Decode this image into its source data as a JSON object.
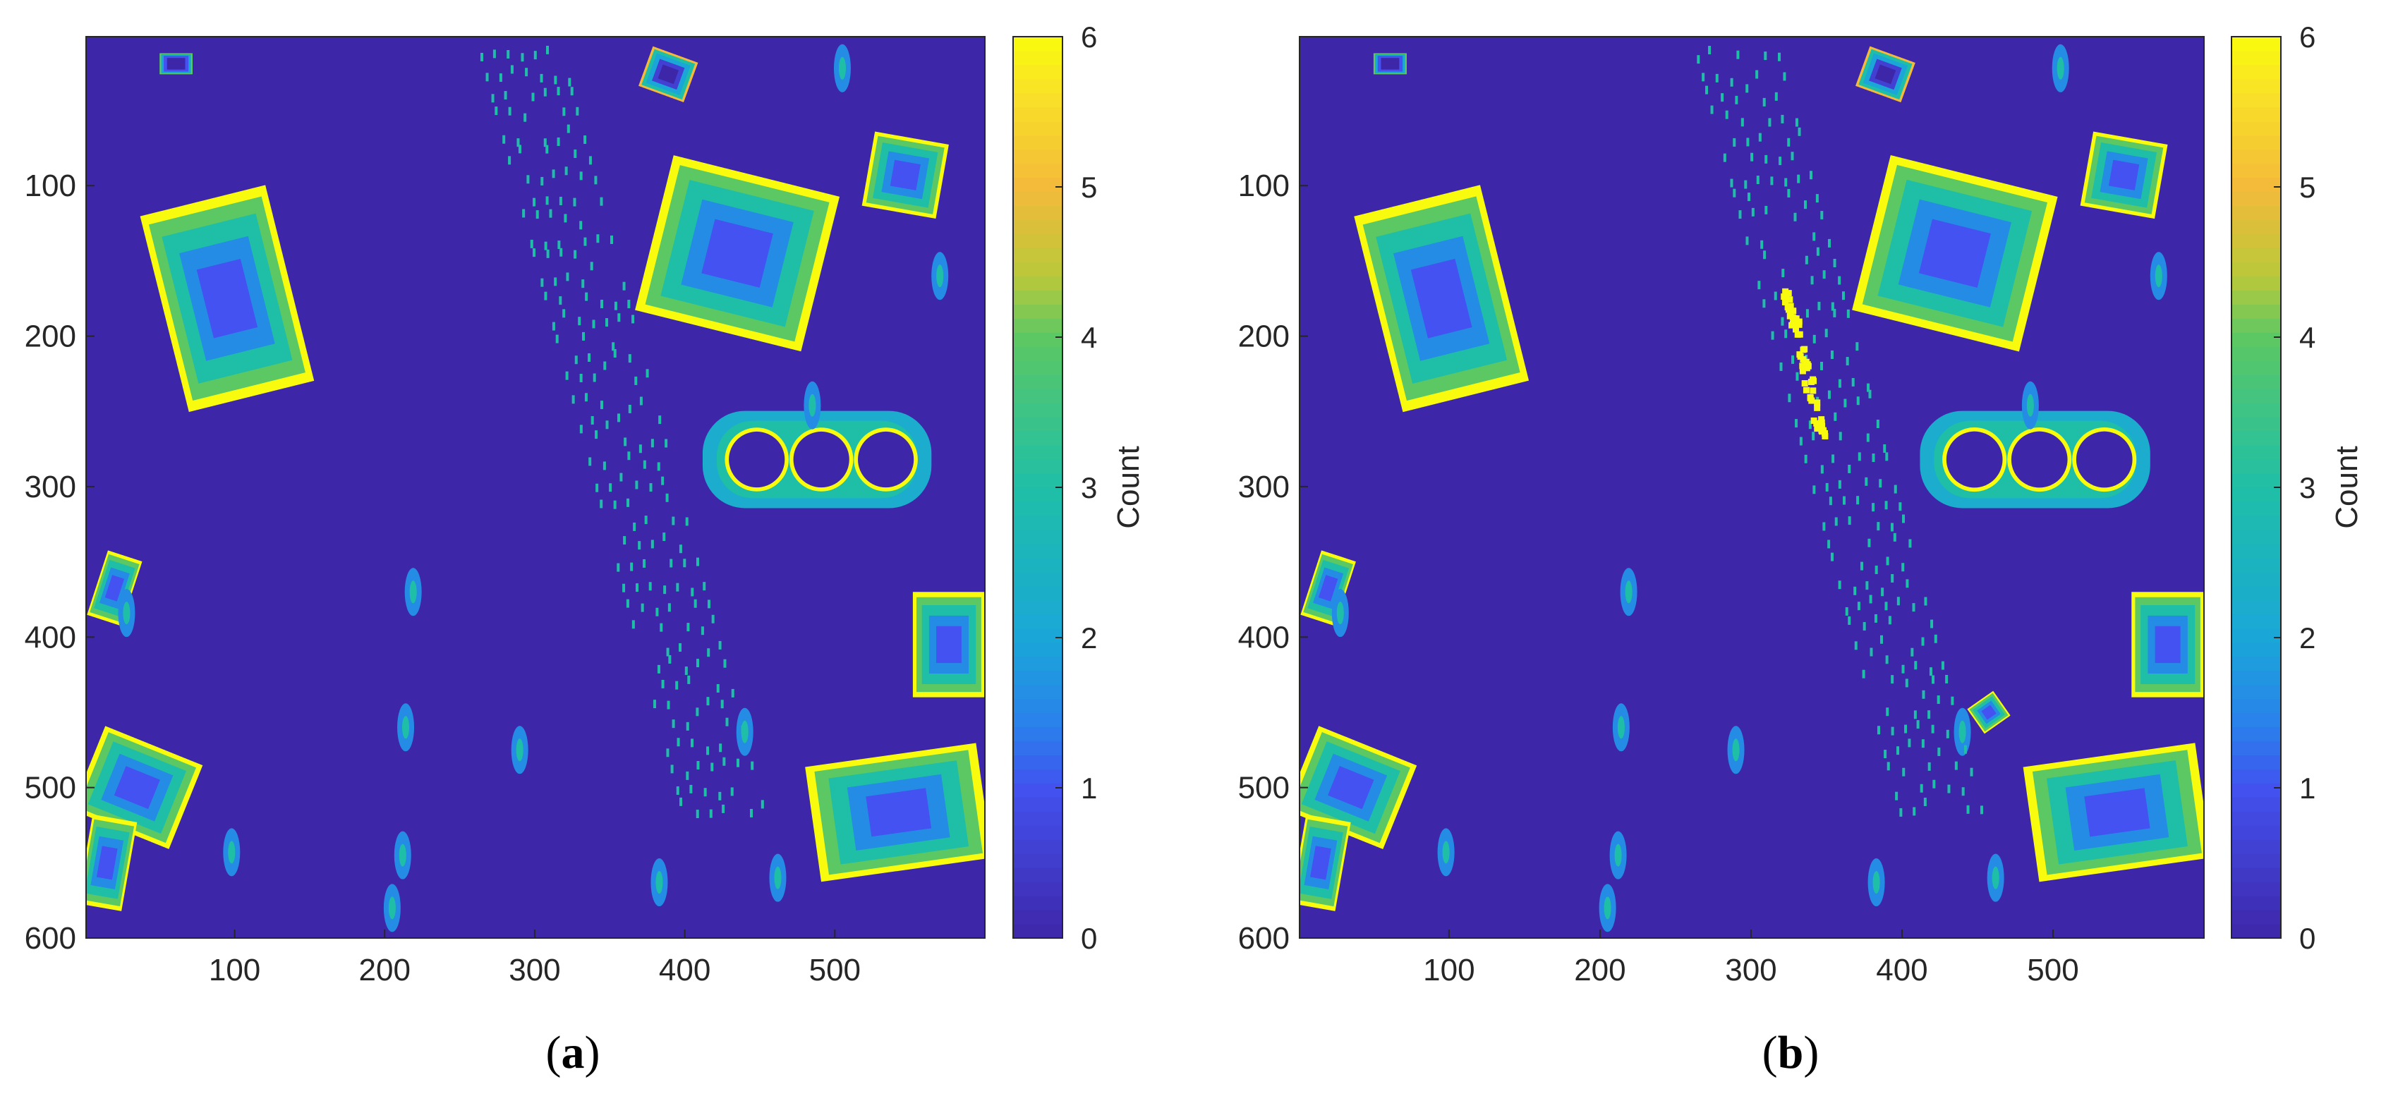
{
  "panels": [
    {
      "label_open": "(",
      "label_letter": "a",
      "label_close": ")",
      "chart_data": {
        "type": "heatmap",
        "xlim": [
          1,
          600
        ],
        "ylim": [
          1,
          600
        ],
        "y_direction": "reverse",
        "x_ticks": [
          "100",
          "200",
          "300",
          "400",
          "500"
        ],
        "y_ticks": [
          "100",
          "200",
          "300",
          "400",
          "500",
          "600"
        ],
        "colorbar": {
          "label": "Count",
          "range": [
            0,
            6
          ],
          "ticks": [
            "0",
            "1",
            "2",
            "3",
            "4",
            "5",
            "6"
          ],
          "colormap": "parula"
        },
        "background_value": 0,
        "features": [
          {
            "kind": "building",
            "x0": 52,
            "y0": 108,
            "x1": 138,
            "y1": 242,
            "rot": -14,
            "max": 6
          },
          {
            "kind": "building",
            "x0": 378,
            "y0": 92,
            "x1": 492,
            "y1": 198,
            "rot": 14,
            "max": 6
          },
          {
            "kind": "building",
            "x0": 373,
            "y0": 12,
            "x1": 405,
            "y1": 40,
            "rot": 20,
            "max": 5
          },
          {
            "kind": "building",
            "x0": 522,
            "y0": 68,
            "x1": 572,
            "y1": 118,
            "rot": 10,
            "max": 6
          },
          {
            "kind": "building",
            "x0": 0,
            "y0": 470,
            "x1": 70,
            "y1": 530,
            "rot": 22,
            "max": 6
          },
          {
            "kind": "building",
            "x0": 0,
            "y0": 520,
            "x1": 30,
            "y1": 580,
            "rot": 10,
            "max": 6
          },
          {
            "kind": "building",
            "x0": 485,
            "y0": 478,
            "x1": 600,
            "y1": 555,
            "rot": -8,
            "max": 6
          },
          {
            "kind": "building",
            "x0": 552,
            "y0": 370,
            "x1": 600,
            "y1": 440,
            "rot": 0,
            "max": 6
          },
          {
            "kind": "building",
            "x0": 8,
            "y0": 345,
            "x1": 32,
            "y1": 390,
            "rot": 18,
            "max": 6
          },
          {
            "kind": "building",
            "x0": 50,
            "y0": 12,
            "x1": 72,
            "y1": 26,
            "rot": 0,
            "max": 4
          },
          {
            "kind": "tanks",
            "cx": [
              448,
              491,
              534
            ],
            "cy": 282,
            "r": 19,
            "max": 6
          },
          {
            "kind": "trees",
            "points": [
              [
                219,
                370
              ],
              [
                214,
                460
              ],
              [
                212,
                545
              ],
              [
                205,
                580
              ],
              [
                290,
                475
              ],
              [
                98,
                543
              ],
              [
                462,
                560
              ],
              [
                383,
                563
              ],
              [
                28,
                384
              ],
              [
                440,
                463
              ],
              [
                505,
                22
              ],
              [
                570,
                160
              ],
              [
                485,
                246
              ]
            ]
          },
          {
            "kind": "road",
            "x0": 262,
            "y0": 5,
            "x1": 400,
            "y1": 520,
            "value": 3
          }
        ]
      }
    },
    {
      "label_open": "(",
      "label_letter": "b",
      "label_close": ")",
      "chart_data": {
        "type": "heatmap",
        "xlim": [
          1,
          600
        ],
        "ylim": [
          1,
          600
        ],
        "y_direction": "reverse",
        "x_ticks": [
          "100",
          "200",
          "300",
          "400",
          "500"
        ],
        "y_ticks": [
          "100",
          "200",
          "300",
          "400",
          "500",
          "600"
        ],
        "colorbar": {
          "label": "Count",
          "range": [
            0,
            6
          ],
          "ticks": [
            "0",
            "1",
            "2",
            "3",
            "4",
            "5",
            "6"
          ],
          "colormap": "parula"
        },
        "background_value": 0,
        "features": [
          {
            "kind": "building",
            "x0": 52,
            "y0": 108,
            "x1": 138,
            "y1": 242,
            "rot": -14,
            "max": 6
          },
          {
            "kind": "building",
            "x0": 378,
            "y0": 92,
            "x1": 492,
            "y1": 198,
            "rot": 14,
            "max": 6
          },
          {
            "kind": "building",
            "x0": 373,
            "y0": 12,
            "x1": 405,
            "y1": 40,
            "rot": 20,
            "max": 5
          },
          {
            "kind": "building",
            "x0": 522,
            "y0": 68,
            "x1": 572,
            "y1": 118,
            "rot": 10,
            "max": 6
          },
          {
            "kind": "building",
            "x0": 0,
            "y0": 470,
            "x1": 70,
            "y1": 530,
            "rot": 22,
            "max": 6
          },
          {
            "kind": "building",
            "x0": 0,
            "y0": 520,
            "x1": 30,
            "y1": 580,
            "rot": 10,
            "max": 6
          },
          {
            "kind": "building",
            "x0": 485,
            "y0": 478,
            "x1": 600,
            "y1": 555,
            "rot": -8,
            "max": 6
          },
          {
            "kind": "building",
            "x0": 552,
            "y0": 370,
            "x1": 600,
            "y1": 440,
            "rot": 0,
            "max": 6
          },
          {
            "kind": "building",
            "x0": 8,
            "y0": 345,
            "x1": 32,
            "y1": 390,
            "rot": 18,
            "max": 6
          },
          {
            "kind": "building",
            "x0": 50,
            "y0": 12,
            "x1": 72,
            "y1": 26,
            "rot": 0,
            "max": 4
          },
          {
            "kind": "tanks",
            "cx": [
              448,
              491,
              534
            ],
            "cy": 282,
            "r": 19,
            "max": 6
          },
          {
            "kind": "trees",
            "points": [
              [
                219,
                370
              ],
              [
                214,
                460
              ],
              [
                212,
                545
              ],
              [
                205,
                580
              ],
              [
                290,
                475
              ],
              [
                98,
                543
              ],
              [
                462,
                560
              ],
              [
                383,
                563
              ],
              [
                28,
                384
              ],
              [
                440,
                463
              ],
              [
                505,
                22
              ],
              [
                570,
                160
              ],
              [
                485,
                246
              ]
            ]
          },
          {
            "kind": "road",
            "x0": 262,
            "y0": 5,
            "x1": 400,
            "y1": 520,
            "value": 3
          },
          {
            "kind": "vehicle",
            "x0": 322,
            "y0": 168,
            "x1": 345,
            "y1": 265,
            "value": 6
          },
          {
            "kind": "building",
            "x0": 447,
            "y0": 440,
            "x1": 468,
            "y1": 460,
            "rot": -35,
            "max": 6
          }
        ]
      }
    }
  ]
}
